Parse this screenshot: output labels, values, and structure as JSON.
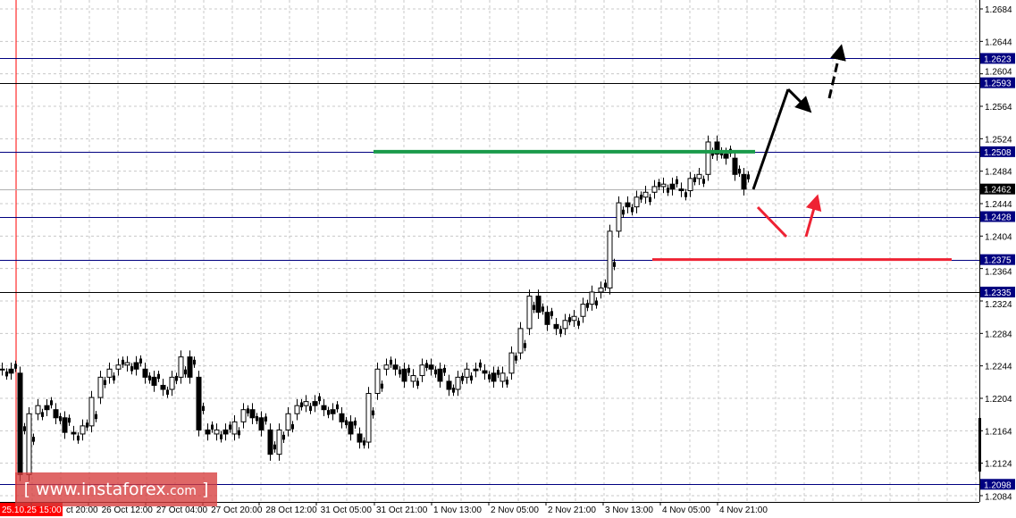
{
  "chart_data": {
    "type": "candlestick",
    "y_axis": {
      "range": [
        1.207,
        1.2695
      ],
      "tick_labels": [
        "1.2684",
        "1.2644",
        "1.2604",
        "1.2564",
        "1.2524",
        "1.2484",
        "1.2444",
        "1.2404",
        "1.2364",
        "1.2324",
        "1.2284",
        "1.2244",
        "1.2204",
        "1.2164",
        "1.2124",
        "1.2084"
      ],
      "position": "right"
    },
    "x_axis": {
      "tick_labels": [
        "ct 20:00",
        "26 Oct 12:00",
        "27 Oct 04:00",
        "27 Oct 20:00",
        "28 Oct 12:00",
        "31 Oct 05:00",
        "31 Oct 21:00",
        "1 Nov 13:00",
        "2 Nov 05:00",
        "2 Nov 21:00",
        "3 Nov 13:00",
        "4 Nov 05:00",
        "4 Nov 21:00"
      ],
      "highlight_label": "25.10.25 15:00"
    },
    "grid": true,
    "closes": [
      1.224,
      1.2235,
      1.211,
      1.2185,
      1.2195,
      1.219,
      1.218,
      1.2162,
      1.216,
      1.217,
      1.2205,
      1.223,
      1.224,
      1.2245,
      1.2248,
      1.224,
      1.223,
      1.222,
      1.2215,
      1.223,
      1.2255,
      1.223,
      1.2165,
      1.216,
      1.2165,
      1.216,
      1.2175,
      1.219,
      1.218,
      1.2165,
      1.2135,
      1.2165,
      1.2185,
      1.2195,
      1.22,
      1.2195,
      1.219,
      1.2185,
      1.2175,
      1.216,
      1.215,
      1.221,
      1.224,
      1.2245,
      1.224,
      1.2225,
      1.2232,
      1.2245,
      1.224,
      1.2225,
      1.2215,
      1.223,
      1.224,
      1.2238,
      1.2235,
      1.2225,
      1.2235,
      1.226,
      1.229,
      1.233,
      1.231,
      1.2295,
      1.229,
      1.23,
      1.2305,
      1.232,
      1.2335,
      1.234,
      1.241,
      1.2445,
      1.244,
      1.2452,
      1.2458,
      1.2465,
      1.2468,
      1.2462,
      1.246,
      1.2475,
      1.248,
      1.252,
      1.2505,
      1.25,
      1.248,
      1.2462
    ],
    "levels": [
      {
        "price": 1.2623,
        "label": "1.2623",
        "color": "#000080"
      },
      {
        "price": 1.2593,
        "label": "1.2593",
        "color": "#000000"
      },
      {
        "price": 1.2508,
        "label": "1.2508",
        "color": "#000080"
      },
      {
        "price": 1.2462,
        "label": "1.2462",
        "color": "#000000",
        "current": true
      },
      {
        "price": 1.2428,
        "label": "1.2428",
        "color": "#000080"
      },
      {
        "price": 1.2375,
        "label": "1.2375",
        "color": "#000080"
      },
      {
        "price": 1.2335,
        "label": "1.2335",
        "color": "#000000"
      },
      {
        "price": 1.2098,
        "label": "1.2098",
        "color": "#000080"
      }
    ],
    "annotations": {
      "resistance_line": {
        "price": 1.2508,
        "color": "#1a9a4a"
      },
      "support_line": {
        "price": 1.2375,
        "color": "#ee2233"
      },
      "bullish_path_color": "#000000",
      "bearish_path_color": "#ee2233"
    }
  },
  "watermark": {
    "text": "www.instaforex",
    "suffix": ".com",
    "open": "[",
    "close": "]"
  }
}
